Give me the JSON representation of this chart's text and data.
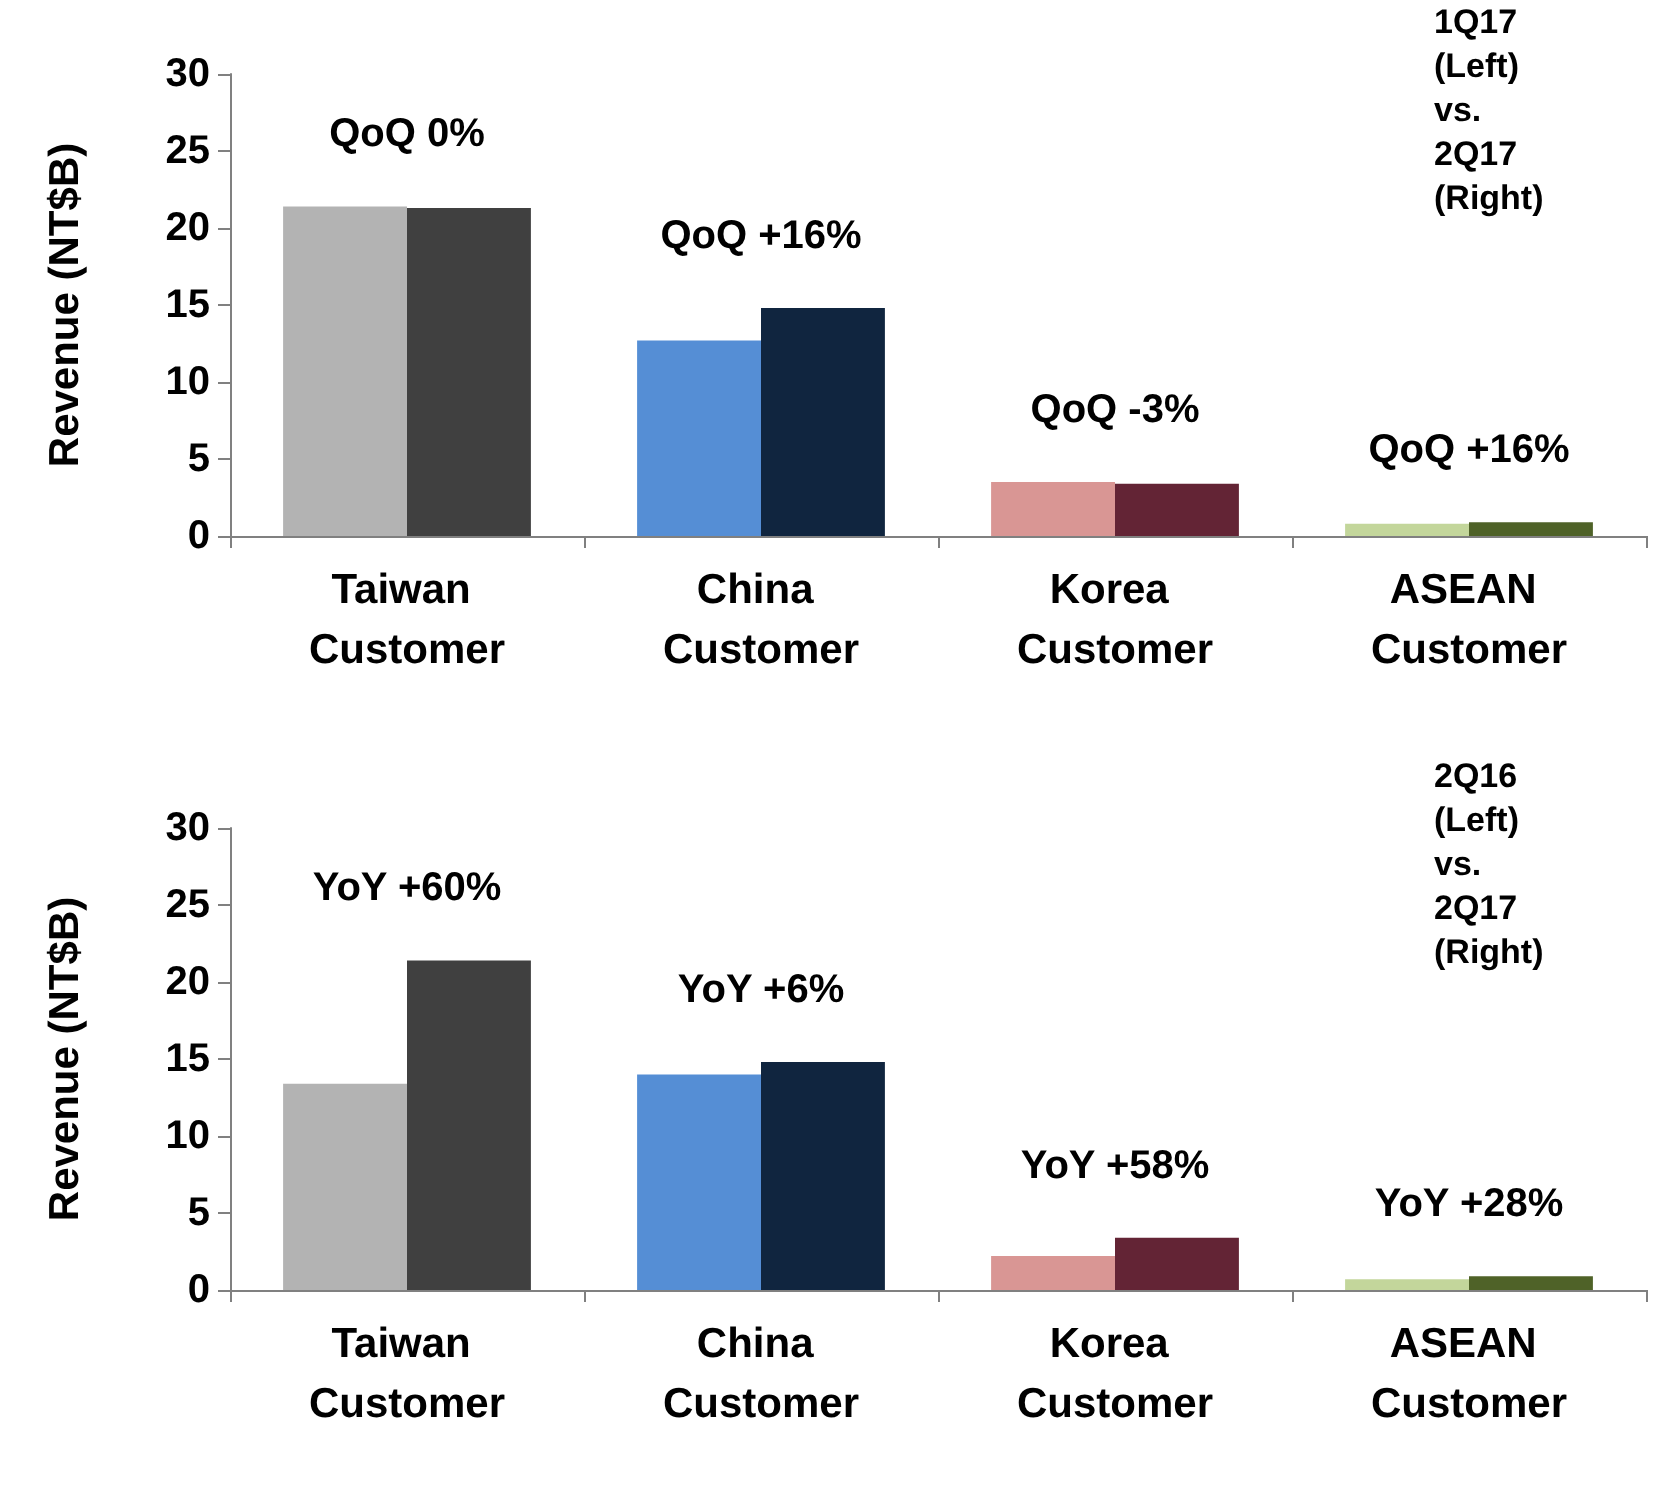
{
  "chart_data": [
    {
      "type": "bar",
      "ylabel": "Revenue (NT$B)",
      "categories": [
        "Taiwan Customer",
        "China Customer",
        "Korea Customer",
        "ASEAN Customer"
      ],
      "series": [
        {
          "colors": [
            "#b3b3b3",
            "#558ed5",
            "#d99694",
            "#c3d69b"
          ],
          "values": [
            21.4,
            12.7,
            3.5,
            0.8
          ]
        },
        {
          "colors": [
            "#404040",
            "#10253f",
            "#632435",
            "#4f6228"
          ],
          "values": [
            21.3,
            14.8,
            3.4,
            0.9
          ]
        }
      ],
      "ylim": [
        0,
        30
      ],
      "yticks": [
        0,
        5,
        10,
        15,
        20,
        25,
        30
      ],
      "grid": false,
      "annotations": [
        "QoQ 0%",
        "QoQ +16%",
        "QoQ -3%",
        "QoQ +16%",
        "1Q17 (Left) vs. 2Q17 (Right)"
      ]
    },
    {
      "type": "bar",
      "ylabel": "Revenue (NT$B)",
      "categories": [
        "Taiwan Customer",
        "China Customer",
        "Korea Customer",
        "ASEAN Customer"
      ],
      "series": [
        {
          "colors": [
            "#b3b3b3",
            "#558ed5",
            "#d99694",
            "#c3d69b"
          ],
          "values": [
            13.4,
            14.0,
            2.2,
            0.7
          ]
        },
        {
          "colors": [
            "#404040",
            "#10253f",
            "#632435",
            "#4f6228"
          ],
          "values": [
            21.4,
            14.8,
            3.4,
            0.9
          ]
        }
      ],
      "ylim": [
        0,
        30
      ],
      "yticks": [
        0,
        5,
        10,
        15,
        20,
        25,
        30
      ],
      "grid": false,
      "annotations": [
        "YoY +60%",
        "YoY +6%",
        "YoY +58%",
        "YoY +28%",
        "2Q16 (Left) vs. 2Q17 (Right)"
      ]
    }
  ]
}
